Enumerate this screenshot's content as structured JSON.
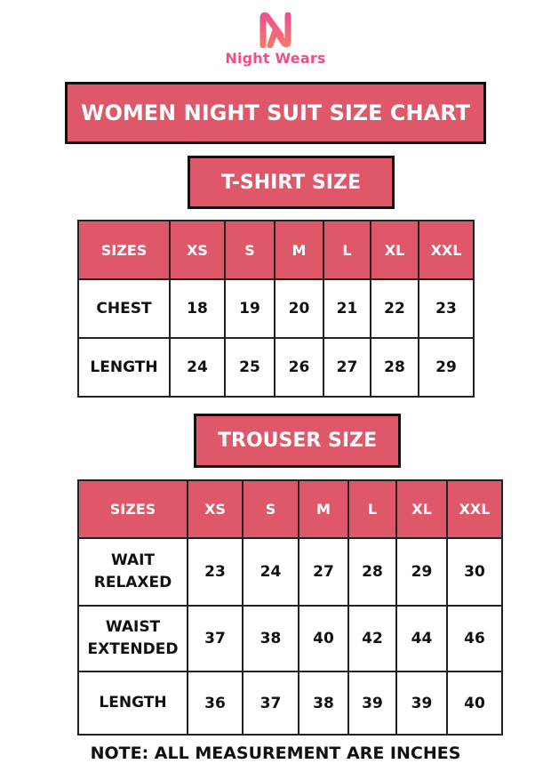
{
  "brand": {
    "name": "Night Wears",
    "color": "#ef4f86",
    "icon": "n-logo-icon"
  },
  "title": "WOMEN NIGHT SUIT SIZE CHART",
  "accent_color": "#df5869",
  "tshirt": {
    "heading": "T-SHIRT SIZE",
    "headers": [
      "SIZES",
      "XS",
      "S",
      "M",
      "L",
      "XL",
      "XXL"
    ],
    "rows": [
      {
        "label": "CHEST",
        "values": [
          "18",
          "19",
          "20",
          "21",
          "22",
          "23"
        ]
      },
      {
        "label": "LENGTH",
        "values": [
          "24",
          "25",
          "26",
          "27",
          "28",
          "29"
        ]
      }
    ]
  },
  "trouser": {
    "heading": "TROUSER SIZE",
    "headers": [
      "SIZES",
      "XS",
      "S",
      "M",
      "L",
      "XL",
      "XXL"
    ],
    "rows": [
      {
        "label": "WAIT RELAXED",
        "values": [
          "23",
          "24",
          "27",
          "28",
          "29",
          "30"
        ]
      },
      {
        "label": "WAIST EXTENDED",
        "values": [
          "37",
          "38",
          "40",
          "42",
          "44",
          "46"
        ]
      },
      {
        "label": "LENGTH",
        "values": [
          "36",
          "37",
          "38",
          "39",
          "39",
          "40"
        ]
      }
    ]
  },
  "note": "NOTE: ALL MEASUREMENT ARE INCHES"
}
